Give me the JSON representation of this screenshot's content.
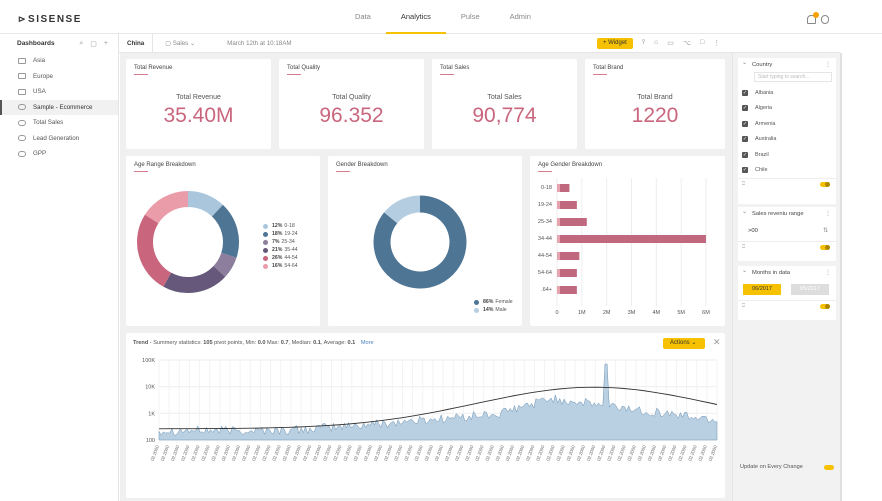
{
  "app": {
    "logo": "SISENSE",
    "logo_mark": "⊳"
  },
  "nav": {
    "items": [
      "Data",
      "Analytics",
      "Pulse",
      "Admin"
    ],
    "active": "Analytics",
    "notification_count": "1"
  },
  "sidebar": {
    "title": "Dashboards",
    "items": [
      {
        "label": "Asia",
        "icon": "folder-icon"
      },
      {
        "label": "Europe",
        "icon": "folder-icon"
      },
      {
        "label": "USA",
        "icon": "folder-icon"
      },
      {
        "label": "Sample - Ecommerce",
        "icon": "dashboard-icon"
      },
      {
        "label": "Total Sales",
        "icon": "dashboard-icon"
      },
      {
        "label": "Lead Generation",
        "icon": "dashboard-icon"
      },
      {
        "label": "GPP",
        "icon": "dashboard-icon"
      }
    ],
    "active": "Sample - Ecommerce"
  },
  "toolbar": {
    "title": "China",
    "folder": "Sales",
    "timestamp": "March 12th at 10:18AM",
    "widget_button": "+ Widget"
  },
  "kpis": [
    {
      "title": "Total Revenue",
      "label": "Total Revenue",
      "value": "35.40M"
    },
    {
      "title": "Total Quality",
      "label": "Total Quality",
      "value": "96.352"
    },
    {
      "title": "Total Sales",
      "label": "Total Sales",
      "value": "90,774"
    },
    {
      "title": "Total Brand",
      "label": "Total Brand",
      "value": "1220"
    }
  ],
  "widgets": {
    "age_range": "Age Range Breakdown",
    "gender": "Gender Breakdown",
    "age_gender": "Age Gender Breakdown"
  },
  "trend": {
    "title": "Trend",
    "summary": " - Summery statistics: ",
    "points": "105",
    "pivot_text": " pivot points, Min: ",
    "min": "0.0",
    "max_label": " Max: ",
    "max": "0.7",
    "median_label": ", Median: ",
    "median": "0.1",
    "avg_label": ", Average: ",
    "avg": "0.1",
    "more": "More",
    "actions": "Actions"
  },
  "right_panel": {
    "country": {
      "title": "Country",
      "search_placeholder": "Start typing to search...",
      "items": [
        "Albania",
        "Algeria",
        "Armenia",
        "Australia",
        "Brazil",
        "Chile"
      ]
    },
    "sales": {
      "title": "Sales reveniu range",
      "value": ">00"
    },
    "months": {
      "title": "Months in data",
      "from": "06/2017",
      "to": "05/2017"
    },
    "update_label": "Update on Every Change"
  },
  "colors": {
    "accent": "#f5c100",
    "pink": "#c9667d",
    "blue": "#4f7595"
  },
  "chart_data": [
    {
      "type": "pie",
      "title": "Age Range Breakdown",
      "categories": [
        "0-18",
        "19-24",
        "25-34",
        "35-44",
        "44-54",
        "54-64"
      ],
      "values": [
        12,
        18,
        7,
        21,
        26,
        16
      ],
      "unit": "%",
      "colors": [
        "#a9c6dd",
        "#4f7595",
        "#8e7e9d",
        "#66587a",
        "#c9667d",
        "#eb9ca9"
      ]
    },
    {
      "type": "pie",
      "title": "Gender Breakdown",
      "categories": [
        "Female",
        "Male"
      ],
      "values": [
        86,
        14
      ],
      "unit": "%",
      "colors": [
        "#4f7595",
        "#b5cde0"
      ]
    },
    {
      "type": "bar",
      "orientation": "horizontal",
      "title": "Age Gender Breakdown",
      "categories": [
        "0-18",
        "19-24",
        "25-34",
        "34-44",
        "44-54",
        "54-64",
        ".64+"
      ],
      "values": [
        0.5,
        0.8,
        1.2,
        6.0,
        0.9,
        0.8,
        0.8
      ],
      "xticks": [
        "0",
        "1M",
        "2M",
        "3M",
        "4M",
        "5M",
        "6M"
      ],
      "xlim": [
        0,
        6
      ]
    },
    {
      "type": "area",
      "title": "Trend",
      "yscale": "log",
      "yticks": [
        "100K",
        "10K",
        "1K",
        "100"
      ],
      "xtick": "02.2000",
      "xtick_count": 56
    }
  ]
}
